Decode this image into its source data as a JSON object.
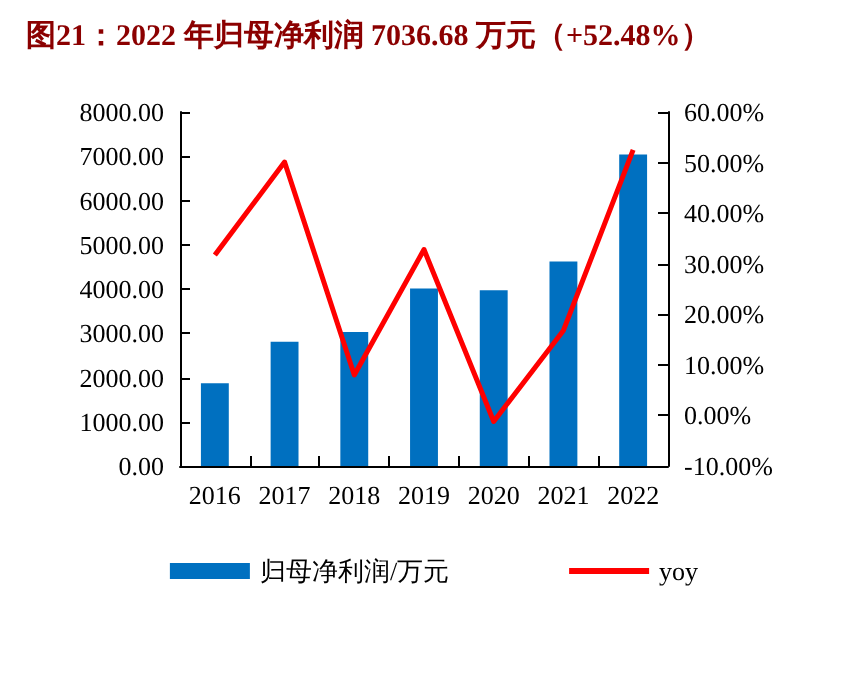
{
  "chart_data": {
    "type": "bar",
    "title": "图21：2022 年归母净利润 7036.68 万元（+52.48%）",
    "categories": [
      "2016",
      "2017",
      "2018",
      "2019",
      "2020",
      "2021",
      "2022"
    ],
    "series": [
      {
        "name": "归母净利润/万元",
        "color": "#0070c0",
        "values": [
          1870,
          2810,
          3030,
          4010,
          3970,
          4620,
          7040
        ]
      },
      {
        "name": "yoy",
        "type": "line",
        "axis": "y2",
        "color": "#ff0000",
        "marker": "none",
        "values": [
          31.7,
          50.1,
          8.0,
          32.8,
          -1.2,
          16.8,
          52.5
        ]
      }
    ],
    "ylim": [
      0,
      8000
    ],
    "yticks": [
      {
        "value": 0,
        "label": "0.00"
      },
      {
        "value": 1000,
        "label": "1000.00"
      },
      {
        "value": 2000,
        "label": "2000.00"
      },
      {
        "value": 3000,
        "label": "3000.00"
      },
      {
        "value": 4000,
        "label": "4000.00"
      },
      {
        "value": 5000,
        "label": "5000.00"
      },
      {
        "value": 6000,
        "label": "6000.00"
      },
      {
        "value": 7000,
        "label": "7000.00"
      },
      {
        "value": 8000,
        "label": "8000.00"
      }
    ],
    "y2lim": [
      -10,
      60
    ],
    "y2ticks": [
      {
        "value": -10,
        "label": "-10.00%"
      },
      {
        "value": 0,
        "label": "0.00%"
      },
      {
        "value": 10,
        "label": "10.00%"
      },
      {
        "value": 20,
        "label": "20.00%"
      },
      {
        "value": 30,
        "label": "30.00%"
      },
      {
        "value": 40,
        "label": "40.00%"
      },
      {
        "value": 50,
        "label": "50.00%"
      },
      {
        "value": 60,
        "label": "60.00%"
      }
    ],
    "grid": false,
    "legend": "bottom"
  }
}
